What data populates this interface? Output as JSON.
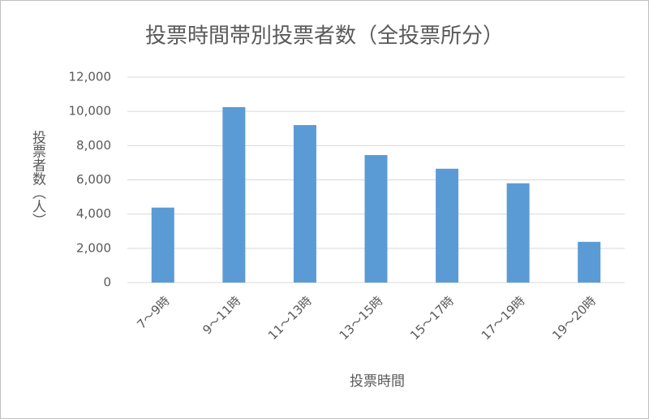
{
  "chart_data": {
    "type": "bar",
    "title": "投票時間帯別投票者数（全投票所分）",
    "x_label": "投票時間",
    "y_label": "投票者数（人）",
    "categories": [
      "7～9時",
      "9～11時",
      "11～13時",
      "13～15時",
      "15～17時",
      "17～19時",
      "19～20時"
    ],
    "values": [
      4380,
      10250,
      9200,
      7450,
      6650,
      5800,
      2380
    ],
    "color": "#5b9bd5",
    "ylim": [
      0,
      12000
    ],
    "yticks": [
      0,
      {
        "value": 2000,
        "label": "2,000"
      },
      {
        "value": 4000,
        "label": "4,000"
      },
      {
        "value": 6000,
        "label": "6,000"
      },
      {
        "value": 8000,
        "label": "8,000"
      },
      {
        "value": 10000,
        "label": "10,000"
      },
      {
        "value": 12000,
        "label": "12,000"
      }
    ],
    "grid": true
  }
}
